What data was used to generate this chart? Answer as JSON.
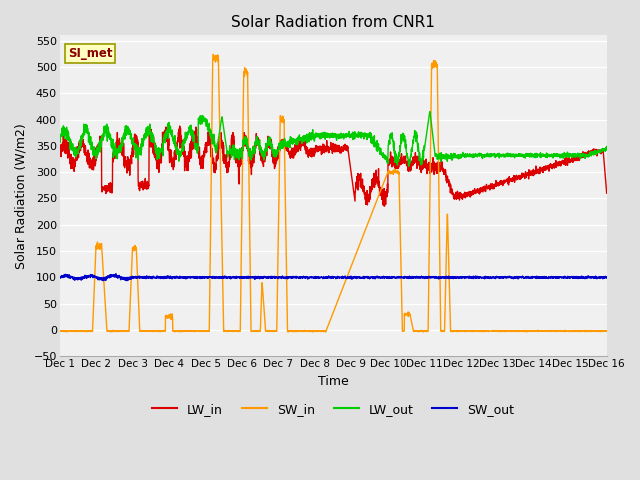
{
  "title": "Solar Radiation from CNR1",
  "xlabel": "Time",
  "ylabel": "Solar Radiation (W/m2)",
  "ylim": [
    -50,
    560
  ],
  "yticks": [
    -50,
    0,
    50,
    100,
    150,
    200,
    250,
    300,
    350,
    400,
    450,
    500,
    550
  ],
  "xlim": [
    0,
    15
  ],
  "xtick_labels": [
    "Dec 1",
    "Dec 2",
    "Dec 3",
    "Dec 4",
    "Dec 5",
    "Dec 6",
    "Dec 7",
    "Dec 8",
    "Dec 9",
    "Dec 10",
    "Dec 11",
    "Dec 12",
    "Dec 13",
    "Dec 14",
    "Dec 15",
    "Dec 16"
  ],
  "fig_bg_color": "#e0e0e0",
  "plot_bg_color": "#f0f0f0",
  "grid_color": "#ffffff",
  "legend_label": "SI_met",
  "legend_box_facecolor": "#ffffc0",
  "legend_box_edgecolor": "#999900",
  "series_colors": {
    "LW_in": "#dd0000",
    "SW_in": "#ff9900",
    "LW_out": "#00cc00",
    "SW_out": "#0000cc"
  },
  "linewidth": 1.0
}
